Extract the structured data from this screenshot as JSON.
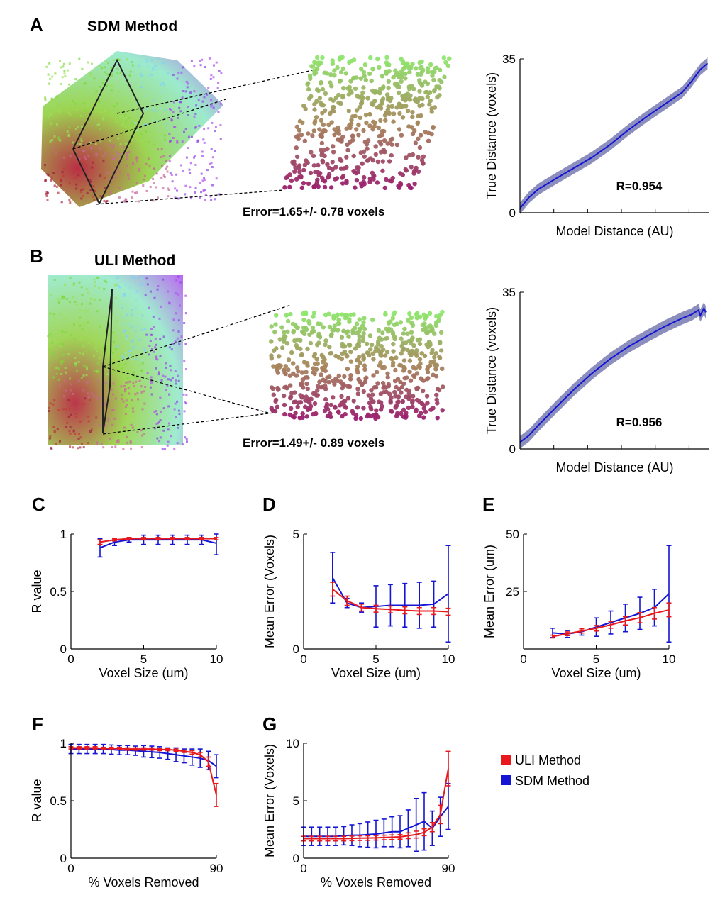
{
  "colors": {
    "uli": "#e8181c",
    "sdm": "#1414d4",
    "band": "#8c8fbe",
    "dashed": "#000000"
  },
  "panel_a": {
    "letter": "A",
    "title": "SDM Method",
    "error_text": "Error=1.65+/- 0.78 voxels"
  },
  "panel_b": {
    "letter": "B",
    "title": "ULI Method",
    "error_text": "Error=1.49+/- 0.89 voxels"
  },
  "legend": [
    {
      "label": "ULI Method",
      "color": "#e8181c"
    },
    {
      "label": "SDM Method",
      "color": "#1414d4"
    }
  ],
  "chart_data": [
    {
      "id": "A-right",
      "type": "line",
      "xlabel": "Model Distance (AU)",
      "ylabel": "True Distance (voxels)",
      "ylim": [
        0,
        35
      ],
      "yticks": [
        0,
        35
      ],
      "xticks_unlabeled": 5,
      "annotation": "R=0.954",
      "band": true,
      "x": [
        0,
        0.05,
        0.1,
        0.2,
        0.3,
        0.4,
        0.5,
        0.6,
        0.7,
        0.8,
        0.9,
        0.95,
        1.0,
        1.04
      ],
      "y": [
        1,
        3.5,
        5.3,
        7.8,
        10.2,
        12.6,
        15.5,
        18.8,
        21.8,
        24.6,
        27.4,
        29.8,
        32.6,
        34
      ],
      "band_halfwidth": 1.3
    },
    {
      "id": "B-right",
      "type": "line",
      "xlabel": "Model Distance (AU)",
      "ylabel": "True Distance (voxels)",
      "ylim": [
        0,
        35
      ],
      "yticks": [
        0,
        35
      ],
      "xticks_unlabeled": 5,
      "annotation": "R=0.956",
      "band": true,
      "x": [
        0,
        0.05,
        0.1,
        0.2,
        0.3,
        0.4,
        0.5,
        0.6,
        0.7,
        0.8,
        0.9,
        0.95,
        0.99,
        1.0,
        1.02,
        1.03
      ],
      "y": [
        1.5,
        3.0,
        5.2,
        9.3,
        13.3,
        16.9,
        20.1,
        22.8,
        25.1,
        27.3,
        29.2,
        30.0,
        31.0,
        29.8,
        31.4,
        30.5
      ],
      "band_halfwidth": 1.4
    },
    {
      "id": "C",
      "type": "line",
      "xlabel": "Voxel Size (um)",
      "ylabel": "R value",
      "xlim": [
        0,
        10
      ],
      "ylim": [
        0,
        1
      ],
      "xticks": [
        0,
        5,
        10
      ],
      "yticks": [
        0,
        0.5,
        1
      ],
      "series": [
        {
          "name": "SDM Method",
          "x": [
            2,
            3,
            4,
            5,
            6,
            7,
            8,
            9,
            10
          ],
          "y": [
            0.88,
            0.93,
            0.95,
            0.95,
            0.95,
            0.95,
            0.95,
            0.95,
            0.92
          ],
          "err": [
            0.08,
            0.03,
            0.02,
            0.04,
            0.04,
            0.04,
            0.04,
            0.04,
            0.1
          ]
        },
        {
          "name": "ULI Method",
          "x": [
            2,
            3,
            4,
            5,
            6,
            7,
            8,
            9,
            10
          ],
          "y": [
            0.93,
            0.95,
            0.96,
            0.96,
            0.96,
            0.96,
            0.96,
            0.96,
            0.96
          ],
          "err": [
            0.02,
            0.01,
            0.01,
            0.01,
            0.01,
            0.01,
            0.01,
            0.01,
            0.01
          ]
        }
      ]
    },
    {
      "id": "D",
      "type": "line",
      "xlabel": "Voxel Size (um)",
      "ylabel": "Mean Error (Voxels)",
      "xlim": [
        0,
        10
      ],
      "ylim": [
        0,
        5
      ],
      "xticks": [
        0,
        5,
        10
      ],
      "yticks": [
        0,
        5
      ],
      "series": [
        {
          "name": "SDM Method",
          "x": [
            2,
            3,
            4,
            5,
            6,
            7,
            8,
            9,
            10
          ],
          "y": [
            3.1,
            2.0,
            1.8,
            1.85,
            1.9,
            1.9,
            1.9,
            1.95,
            2.4
          ],
          "err": [
            1.1,
            0.2,
            0.2,
            0.9,
            0.9,
            0.95,
            1.0,
            1.0,
            2.1
          ]
        },
        {
          "name": "ULI Method",
          "x": [
            2,
            3,
            4,
            5,
            6,
            7,
            8,
            9,
            10
          ],
          "y": [
            2.6,
            2.1,
            1.8,
            1.75,
            1.72,
            1.68,
            1.65,
            1.65,
            1.62
          ],
          "err": [
            0.3,
            0.2,
            0.15,
            0.15,
            0.15,
            0.15,
            0.15,
            0.15,
            0.15
          ]
        }
      ]
    },
    {
      "id": "E",
      "type": "line",
      "xlabel": "Voxel Size (um)",
      "ylabel": "Mean Error (um)",
      "xlim": [
        0,
        10
      ],
      "ylim": [
        0,
        50
      ],
      "xticks": [
        0,
        5,
        10
      ],
      "yticks": [
        25,
        50
      ],
      "series": [
        {
          "name": "SDM Method",
          "x": [
            2,
            3,
            4,
            5,
            6,
            7,
            8,
            9,
            10
          ],
          "y": [
            7,
            6.5,
            7.5,
            9.5,
            11.5,
            13.5,
            15.5,
            18,
            24
          ],
          "err": [
            2,
            1.5,
            1.5,
            4,
            5,
            6,
            7,
            8,
            21
          ]
        },
        {
          "name": "ULI Method",
          "x": [
            2,
            3,
            4,
            5,
            6,
            7,
            8,
            9,
            10
          ],
          "y": [
            5.4,
            6.6,
            7.8,
            9,
            10.5,
            12.2,
            13.6,
            15.5,
            17
          ],
          "err": [
            0.6,
            0.8,
            0.9,
            1.2,
            1.5,
            1.8,
            2.2,
            2.5,
            3
          ]
        }
      ]
    },
    {
      "id": "F",
      "type": "line",
      "xlabel": "% Voxels Removed",
      "ylabel": "R value",
      "xlim": [
        0,
        90
      ],
      "ylim": [
        0,
        1
      ],
      "xticks": [
        0,
        90
      ],
      "yticks": [
        0,
        0.5,
        1
      ],
      "series": [
        {
          "name": "SDM Method",
          "x": [
            0,
            5,
            10,
            15,
            20,
            25,
            30,
            35,
            40,
            45,
            50,
            55,
            60,
            65,
            70,
            75,
            80,
            85,
            90
          ],
          "y": [
            0.95,
            0.95,
            0.95,
            0.95,
            0.95,
            0.945,
            0.94,
            0.94,
            0.935,
            0.93,
            0.925,
            0.92,
            0.91,
            0.9,
            0.89,
            0.88,
            0.87,
            0.85,
            0.8
          ],
          "err": [
            0.04,
            0.04,
            0.04,
            0.04,
            0.04,
            0.04,
            0.04,
            0.04,
            0.04,
            0.05,
            0.05,
            0.05,
            0.05,
            0.06,
            0.06,
            0.07,
            0.08,
            0.08,
            0.1
          ]
        },
        {
          "name": "ULI Method",
          "x": [
            0,
            5,
            10,
            15,
            20,
            25,
            30,
            35,
            40,
            45,
            50,
            55,
            60,
            65,
            70,
            75,
            80,
            85,
            90
          ],
          "y": [
            0.96,
            0.96,
            0.96,
            0.96,
            0.955,
            0.955,
            0.955,
            0.95,
            0.95,
            0.95,
            0.95,
            0.945,
            0.945,
            0.94,
            0.93,
            0.92,
            0.9,
            0.84,
            0.55
          ],
          "err": [
            0.01,
            0.01,
            0.01,
            0.01,
            0.01,
            0.01,
            0.01,
            0.01,
            0.01,
            0.01,
            0.01,
            0.01,
            0.01,
            0.01,
            0.01,
            0.015,
            0.02,
            0.04,
            0.1
          ]
        }
      ]
    },
    {
      "id": "G",
      "type": "line",
      "xlabel": "% Voxels Removed",
      "ylabel": "Mean Error (Voxels)",
      "xlim": [
        0,
        90
      ],
      "ylim": [
        0,
        10
      ],
      "xticks": [
        0,
        90
      ],
      "yticks": [
        0,
        5,
        10
      ],
      "series": [
        {
          "name": "SDM Method",
          "x": [
            0,
            5,
            10,
            15,
            20,
            25,
            30,
            35,
            40,
            45,
            50,
            55,
            60,
            65,
            70,
            75,
            80,
            85,
            90
          ],
          "y": [
            1.9,
            1.9,
            1.9,
            1.9,
            1.9,
            1.95,
            2.0,
            2.0,
            2.05,
            2.1,
            2.2,
            2.3,
            2.3,
            2.6,
            2.9,
            3.2,
            2.6,
            3.6,
            4.5
          ],
          "err": [
            0.8,
            0.8,
            0.8,
            0.8,
            0.8,
            0.8,
            0.9,
            1.0,
            1.1,
            1.2,
            1.2,
            1.3,
            1.4,
            1.6,
            2.3,
            2.5,
            1.5,
            1.7,
            2.0
          ]
        },
        {
          "name": "ULI Method",
          "x": [
            0,
            5,
            10,
            15,
            20,
            25,
            30,
            35,
            40,
            45,
            50,
            55,
            60,
            65,
            70,
            75,
            80,
            85,
            90
          ],
          "y": [
            1.7,
            1.7,
            1.7,
            1.7,
            1.7,
            1.7,
            1.72,
            1.74,
            1.75,
            1.77,
            1.8,
            1.82,
            1.85,
            1.95,
            2.05,
            2.25,
            2.7,
            3.8,
            7.8
          ],
          "err": [
            0.2,
            0.2,
            0.2,
            0.2,
            0.2,
            0.2,
            0.2,
            0.2,
            0.2,
            0.2,
            0.2,
            0.2,
            0.2,
            0.25,
            0.3,
            0.3,
            0.4,
            0.8,
            1.5
          ]
        }
      ]
    }
  ]
}
